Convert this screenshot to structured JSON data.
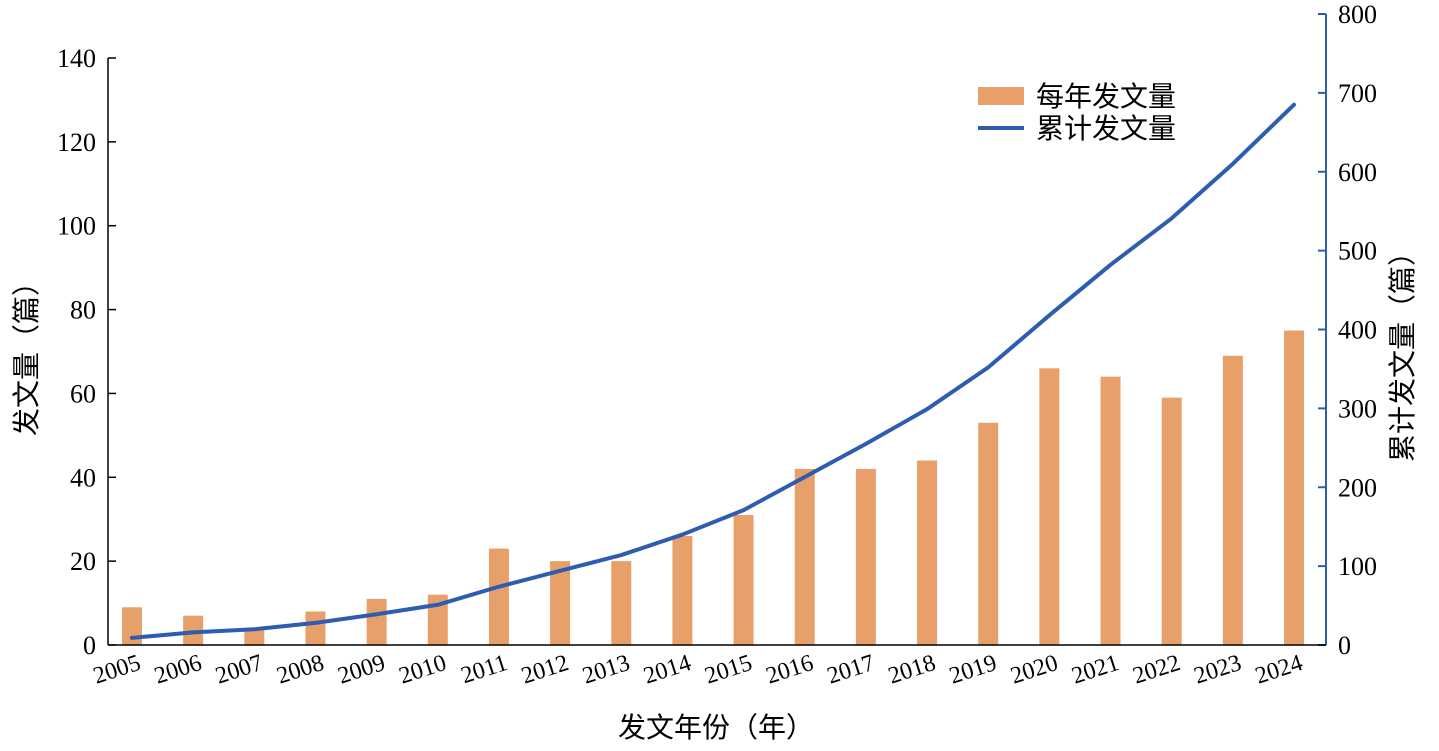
{
  "chart_data": {
    "type": "bar+line",
    "title": "",
    "xlabel": "发文年份（年）",
    "ylabel_left": "发文量（篇）",
    "ylabel_right": "累计发文量（篇）",
    "ylim_left": [
      0,
      140
    ],
    "ylim_right": [
      0,
      800
    ],
    "yticks_left": [
      0,
      20,
      40,
      60,
      80,
      100,
      120,
      140
    ],
    "yticks_right": [
      0,
      100,
      200,
      300,
      400,
      500,
      600,
      700,
      800
    ],
    "categories": [
      "2005",
      "2006",
      "2007",
      "2008",
      "2009",
      "2010",
      "2011",
      "2012",
      "2013",
      "2014",
      "2015",
      "2016",
      "2017",
      "2018",
      "2019",
      "2020",
      "2021",
      "2022",
      "2023",
      "2024"
    ],
    "series": [
      {
        "name": "每年发文量",
        "type": "bar",
        "axis": "left",
        "color": "#E8A06A",
        "values": [
          9,
          7,
          4,
          8,
          11,
          12,
          23,
          20,
          20,
          26,
          31,
          42,
          42,
          44,
          53,
          66,
          64,
          59,
          69,
          75
        ]
      },
      {
        "name": "累计发文量",
        "type": "line",
        "axis": "right",
        "color": "#2E5CB0",
        "values": [
          9,
          16,
          20,
          28,
          39,
          51,
          74,
          94,
          114,
          140,
          171,
          213,
          255,
          299,
          352,
          418,
          482,
          541,
          610,
          685
        ]
      }
    ],
    "legend_position": "top-right",
    "grid": false
  },
  "colors": {
    "bar": "#E8A06A",
    "line": "#2E5CB0",
    "right_axis": "#2E5CB0",
    "left_axis": "#000000"
  }
}
